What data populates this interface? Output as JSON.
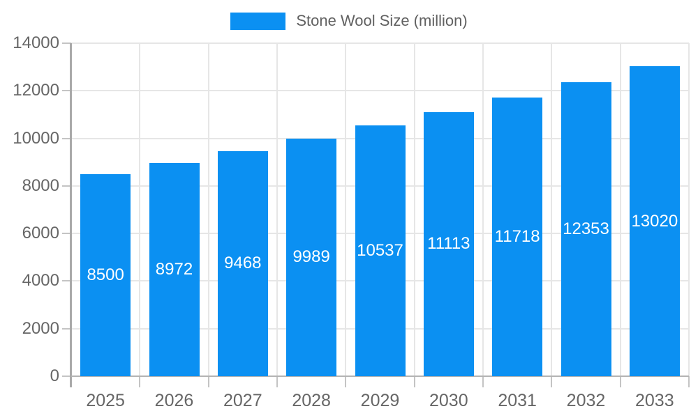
{
  "chart_data": {
    "type": "bar",
    "title": "",
    "legend_position": "top-center",
    "categories": [
      "2025",
      "2026",
      "2027",
      "2028",
      "2029",
      "2030",
      "2031",
      "2032",
      "2033"
    ],
    "series": [
      {
        "name": "Stone Wool Size (million)",
        "values": [
          8500,
          8972,
          9468,
          9989,
          10537,
          11113,
          11718,
          12353,
          13020
        ]
      }
    ],
    "xlabel": "",
    "ylabel": "",
    "ylim": [
      0,
      14000
    ],
    "ytick_interval": 2000,
    "yticks": [
      0,
      2000,
      4000,
      6000,
      8000,
      10000,
      12000,
      14000
    ],
    "grid": true,
    "value_labels": "inside-center"
  },
  "colors": {
    "bar": "#0b90f2",
    "bar_value_label": "#ffffff",
    "grid": "#e6e6e6",
    "axis_line": "#a9a9a9",
    "tick": "#c4c4c4",
    "axis_label": "#666666",
    "legend_text": "#616161",
    "background": "#ffffff"
  }
}
